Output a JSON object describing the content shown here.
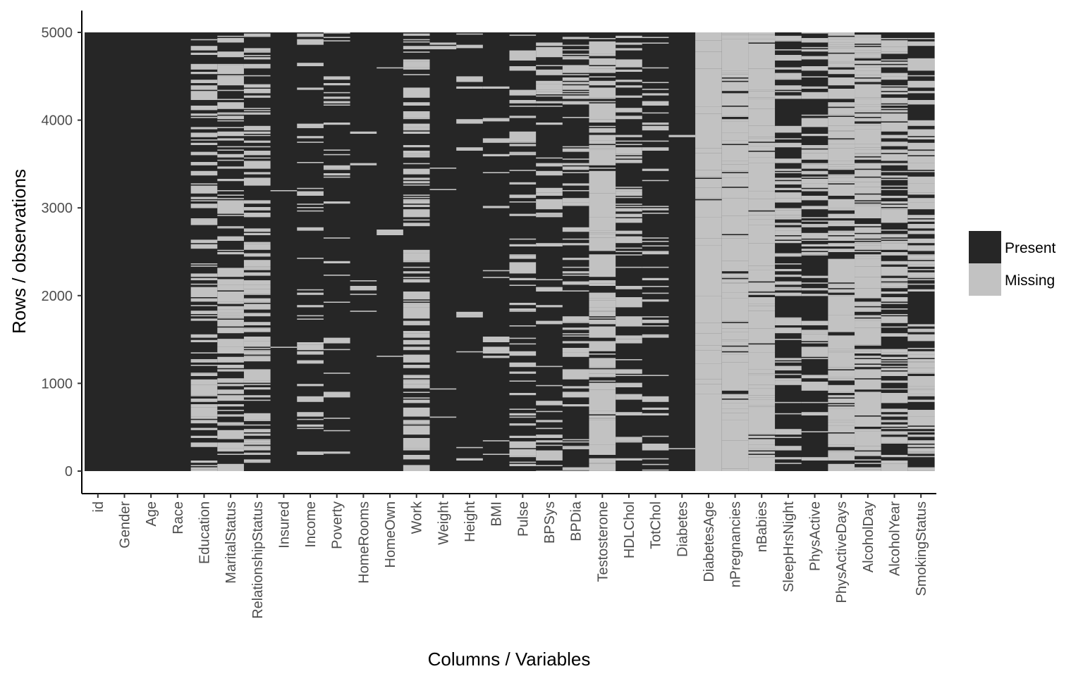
{
  "chart_data": {
    "type": "heatmap",
    "title": "",
    "xlabel": "Columns / Variables",
    "ylabel": "Rows / observations",
    "ylim": [
      0,
      5000
    ],
    "yticks": [
      0,
      1000,
      2000,
      3000,
      4000,
      5000
    ],
    "grid": false,
    "legend_position": "right",
    "categories": [
      "id",
      "Gender",
      "Age",
      "Race",
      "Education",
      "MaritalStatus",
      "RelationshipStatus",
      "Insured",
      "Income",
      "Poverty",
      "HomeRooms",
      "HomeOwn",
      "Work",
      "Weight",
      "Height",
      "BMI",
      "Pulse",
      "BPSys",
      "BPDia",
      "Testosterone",
      "HDLChol",
      "TotChol",
      "Diabetes",
      "DiabetesAge",
      "nPregnancies",
      "nBabies",
      "SleepHrsNight",
      "PhysActive",
      "PhysActiveDays",
      "AlcoholDay",
      "AlcoholYear",
      "SmokingStatus"
    ],
    "series": [
      {
        "name": "Present",
        "color": "#262626"
      },
      {
        "name": "Missing",
        "color": "#c2c2c2"
      }
    ],
    "missing_density": [
      0,
      0,
      0,
      0,
      0.27,
      0.27,
      0.27,
      0.004,
      0.09,
      0.09,
      0.007,
      0.007,
      0.27,
      0.008,
      0.03,
      0.03,
      0.14,
      0.14,
      0.14,
      0.55,
      0.16,
      0.16,
      0.003,
      0.96,
      0.74,
      0.78,
      0.23,
      0.17,
      0.53,
      0.51,
      0.27,
      0.29
    ]
  }
}
